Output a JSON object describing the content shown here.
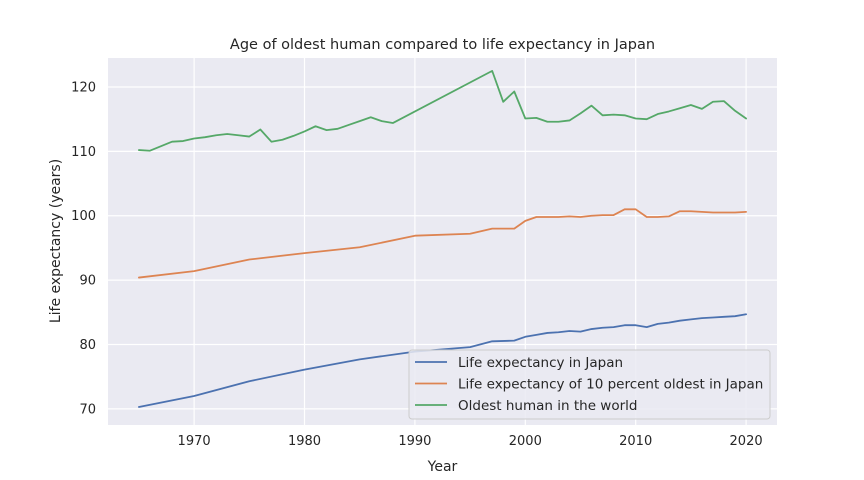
{
  "chart_data": {
    "type": "line",
    "title": "Age of oldest human compared to life expectancy in Japan",
    "xlabel": "Year",
    "ylabel": "Life expectancy (years)",
    "xlim": [
      1962.2,
      2022.8
    ],
    "ylim": [
      67.5,
      124.5
    ],
    "xticks": [
      1970,
      1980,
      1990,
      2000,
      2010,
      2020
    ],
    "yticks": [
      70,
      80,
      90,
      100,
      110,
      120
    ],
    "grid": true,
    "legend_position": "lower right",
    "series": [
      {
        "name": "Life expectancy in Japan",
        "color": "#4c72b0",
        "x": [
          1965,
          1970,
          1975,
          1980,
          1985,
          1990,
          1995,
          1997,
          1999,
          2000,
          2001,
          2002,
          2003,
          2004,
          2005,
          2006,
          2007,
          2008,
          2009,
          2010,
          2011,
          2012,
          2013,
          2014,
          2015,
          2016,
          2017,
          2018,
          2019,
          2020
        ],
        "y": [
          70.3,
          72.0,
          74.3,
          76.1,
          77.7,
          78.9,
          79.6,
          80.5,
          80.6,
          81.2,
          81.5,
          81.8,
          81.9,
          82.1,
          82.0,
          82.4,
          82.6,
          82.7,
          83.0,
          83.0,
          82.7,
          83.2,
          83.4,
          83.7,
          83.9,
          84.1,
          84.2,
          84.3,
          84.4,
          84.7
        ]
      },
      {
        "name": "Life expectancy of 10 percent oldest in Japan",
        "color": "#dd8452",
        "x": [
          1965,
          1970,
          1975,
          1980,
          1985,
          1990,
          1995,
          1997,
          1999,
          2000,
          2001,
          2002,
          2003,
          2004,
          2005,
          2006,
          2007,
          2008,
          2009,
          2010,
          2011,
          2012,
          2013,
          2014,
          2015,
          2016,
          2017,
          2018,
          2019,
          2020
        ],
        "y": [
          90.4,
          91.4,
          93.2,
          94.2,
          95.1,
          96.9,
          97.2,
          98.0,
          98.0,
          99.2,
          99.8,
          99.8,
          99.8,
          99.9,
          99.8,
          100.0,
          100.1,
          100.1,
          101.0,
          101.0,
          99.8,
          99.8,
          99.9,
          100.7,
          100.7,
          100.6,
          100.5,
          100.5,
          100.5,
          100.6
        ]
      },
      {
        "name": "Oldest human in the world",
        "color": "#55a868",
        "x": [
          1965,
          1966,
          1967,
          1968,
          1969,
          1970,
          1971,
          1972,
          1973,
          1974,
          1975,
          1976,
          1977,
          1978,
          1979,
          1980,
          1981,
          1982,
          1983,
          1984,
          1985,
          1986,
          1987,
          1988,
          1997,
          1998,
          1999,
          2000,
          2001,
          2002,
          2003,
          2004,
          2005,
          2006,
          2007,
          2008,
          2009,
          2010,
          2011,
          2012,
          2013,
          2014,
          2015,
          2016,
          2017,
          2018,
          2019,
          2020
        ],
        "y": [
          110.2,
          110.1,
          110.8,
          111.5,
          111.6,
          112.0,
          112.2,
          112.5,
          112.7,
          112.5,
          112.3,
          113.4,
          111.5,
          111.8,
          112.4,
          113.1,
          113.9,
          113.3,
          113.5,
          114.1,
          114.7,
          115.3,
          114.7,
          114.4,
          122.5,
          117.7,
          119.3,
          115.1,
          115.2,
          114.6,
          114.6,
          114.8,
          115.9,
          117.1,
          115.6,
          115.7,
          115.6,
          115.1,
          115.0,
          115.8,
          116.2,
          116.7,
          117.2,
          116.6,
          117.7,
          117.8,
          116.3,
          115.1
        ]
      }
    ]
  }
}
